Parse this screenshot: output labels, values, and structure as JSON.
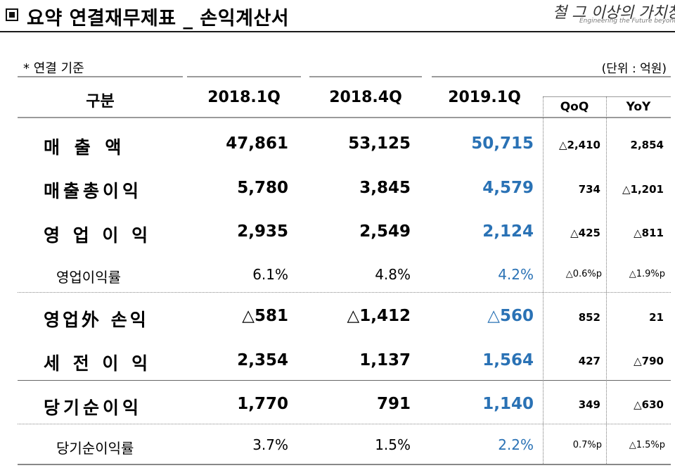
{
  "header": {
    "title": "요약 연결재무제표 _ 손익계산서",
    "logo_main": "철 그 이상의 가치창조",
    "logo_sub": "Engineering the Future beyond Steel"
  },
  "basis": "* 연결 기준",
  "unit": "(단위 : 억원)",
  "columns": {
    "category": "구분",
    "p1": "2018.1Q",
    "p2": "2018.4Q",
    "p3": "2019.1Q",
    "qoq": "QoQ",
    "yoy": "YoY"
  },
  "rows": [
    {
      "label": "매   출   액",
      "p1": "47,861",
      "p2": "53,125",
      "p3": "50,715",
      "qoq": "△2,410",
      "yoy": "2,854"
    },
    {
      "label": "매출총이익",
      "p1": "5,780",
      "p2": "3,845",
      "p3": "4,579",
      "qoq": "734",
      "yoy": "△1,201"
    },
    {
      "label": "영 업 이 익",
      "p1": "2,935",
      "p2": "2,549",
      "p3": "2,124",
      "qoq": "△425",
      "yoy": "△811"
    },
    {
      "label": "영업이익률",
      "p1": "6.1%",
      "p2": "4.8%",
      "p3": "4.2%",
      "qoq": "△0.6%p",
      "yoy": "△1.9%p"
    },
    {
      "label": "영업外 손익",
      "p1": "△581",
      "p2": "△1,412",
      "p3": "△560",
      "qoq": "852",
      "yoy": "21"
    },
    {
      "label": "세 전 이 익",
      "p1": "2,354",
      "p2": "1,137",
      "p3": "1,564",
      "qoq": "427",
      "yoy": "△790"
    },
    {
      "label": "당기순이익",
      "p1": "1,770",
      "p2": "791",
      "p3": "1,140",
      "qoq": "349",
      "yoy": "△630"
    },
    {
      "label": "당기순이익률",
      "p1": "3.7%",
      "p2": "1.5%",
      "p3": "2.2%",
      "qoq": "0.7%p",
      "yoy": "△1.5%p"
    }
  ],
  "colors": {
    "highlight": "#2a72b5",
    "rule": "#888888"
  }
}
